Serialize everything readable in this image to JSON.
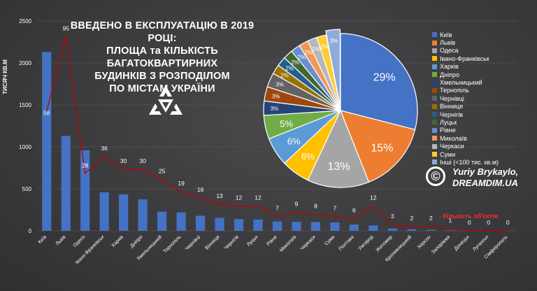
{
  "title_lines": [
    "ВВЕДЕНО В ЕКСПЛУАТАЦІЮ В 2019 РОЦІ:",
    "ПЛОЩА та КІЛЬКІСТЬ БАГАТОКВАРТИРНИХ",
    "БУДИНКІВ З РОЗПОДІЛОМ",
    "ПО МІСТАМ УКРАЇНИ"
  ],
  "credit": {
    "icon": "©",
    "author": "Yuriy Brykaylo,",
    "site": "DREAMDIM.UA"
  },
  "logo": {
    "icon": "dreamdim-logo-icon"
  },
  "colors": {
    "bar": "#4472c4",
    "line": "#c00000",
    "background": "#3b3b3d",
    "text": "#ffffff",
    "grid": "#5a5a5c"
  },
  "chart_data": [
    {
      "type": "bar",
      "ylabel": "ТИСЯЧ КВ.М",
      "ylim": [
        0,
        2500
      ],
      "yticks": [
        0,
        500,
        1000,
        1500,
        2000,
        2500
      ],
      "grid": true,
      "categories": [
        "Київ",
        "Львів",
        "Одеса",
        "Івано-Франківськ",
        "Харків",
        "Дніпро",
        "Хмельницький",
        "Тернопіль",
        "Чернівці",
        "Вінниця",
        "Чернігів",
        "Луцьк",
        "Рівне",
        "Миколаїв",
        "Черкаси",
        "Суми",
        "Полтава",
        "Ужгород",
        "Житомир",
        "Кропивницький",
        "Херсон",
        "Запоріжжя",
        "Донецьк",
        "Луганськ",
        "Сімферополь"
      ],
      "series": [
        {
          "kind": "bar",
          "values": [
            2130,
            1130,
            960,
            460,
            435,
            375,
            228,
            220,
            180,
            155,
            140,
            135,
            112,
            108,
            105,
            100,
            75,
            65,
            28,
            18,
            12,
            5,
            0,
            0,
            0
          ]
        },
        {
          "kind": "line",
          "name": "Кількість об'єктів",
          "values": [
            58,
            95,
            28,
            36,
            30,
            30,
            25,
            19,
            16,
            13,
            12,
            12,
            7,
            9,
            8,
            7,
            6,
            12,
            3,
            2,
            2,
            1,
            0,
            0,
            0
          ]
        }
      ]
    },
    {
      "type": "pie",
      "legend_position": "right",
      "slices": [
        {
          "label": "Київ",
          "value": 29,
          "display": "29%",
          "color": "#4472c4"
        },
        {
          "label": "Львів",
          "value": 15,
          "display": "15%",
          "color": "#ed7d31"
        },
        {
          "label": "Одеса",
          "value": 13,
          "display": "13%",
          "color": "#a5a5a5"
        },
        {
          "label": "Івано-Франківськ",
          "value": 6,
          "display": "6%",
          "color": "#ffc000"
        },
        {
          "label": "Харків",
          "value": 6,
          "display": "6%",
          "color": "#5b9bd5"
        },
        {
          "label": "Дніпро",
          "value": 5,
          "display": "5%",
          "color": "#70ad47"
        },
        {
          "label": "Хмельницький",
          "value": 3,
          "display": "3%",
          "color": "#264478"
        },
        {
          "label": "Тернопіль",
          "value": 3,
          "display": "3%",
          "color": "#9e480e"
        },
        {
          "label": "Чернівці",
          "value": 3,
          "display": "3%",
          "color": "#636363"
        },
        {
          "label": "Вінниця",
          "value": 2,
          "display": "2%",
          "color": "#997300"
        },
        {
          "label": "Чернігів",
          "value": 2,
          "display": "2%",
          "color": "#255e91"
        },
        {
          "label": "Луцьк",
          "value": 2,
          "display": "2%",
          "color": "#43682b"
        },
        {
          "label": "Рівне",
          "value": 2,
          "display": "2%",
          "color": "#698ed0"
        },
        {
          "label": "Миколаїв",
          "value": 2,
          "display": "2%",
          "color": "#f1975a"
        },
        {
          "label": "Черкаси",
          "value": 2,
          "display": "2%",
          "color": "#b7b7b7"
        },
        {
          "label": "Суми",
          "value": 2,
          "display": "2%",
          "color": "#ffcd33"
        },
        {
          "label": "Інші (<100 тис. кв.м)",
          "value": 3,
          "display": "3%",
          "color": "#8faadc"
        }
      ]
    }
  ]
}
